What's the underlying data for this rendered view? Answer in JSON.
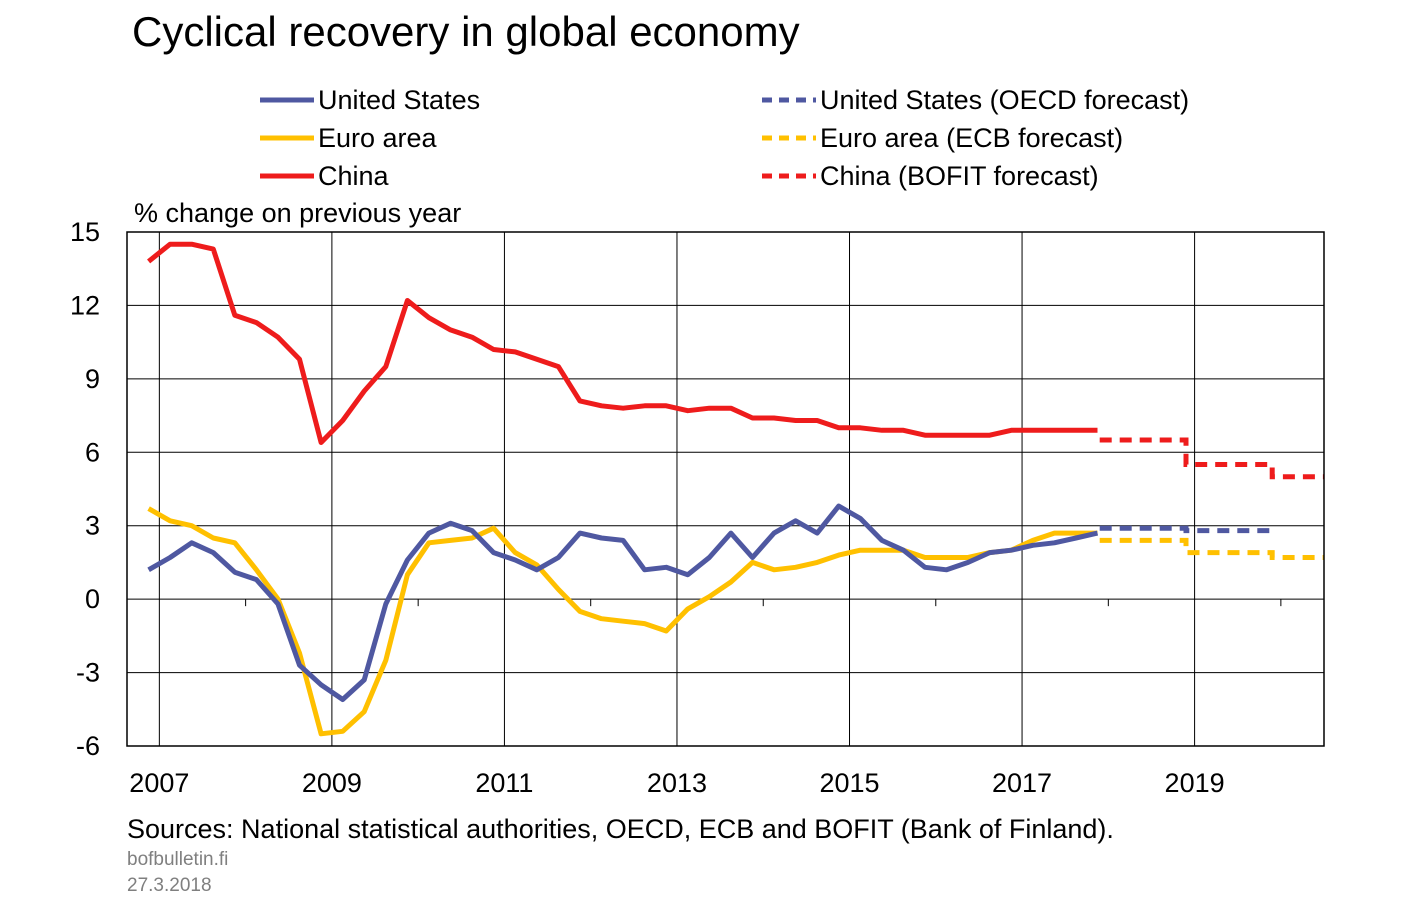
{
  "title": "Cyclical recovery in global economy",
  "unit_label": "% change on previous year",
  "source": "Sources: National statistical authorities, OECD, ECB and BOFIT (Bank of Finland).",
  "site": "bofbulletin.fi",
  "date": "27.3.2018",
  "colors": {
    "us": "#4F58A1",
    "euro": "#FFC000",
    "china": "#EE1C1C",
    "grid": "#000000"
  },
  "legend": [
    {
      "label": "United States",
      "color": "#4F58A1",
      "dashed": false
    },
    {
      "label": "Euro area",
      "color": "#FFC000",
      "dashed": false
    },
    {
      "label": "China",
      "color": "#EE1C1C",
      "dashed": false
    },
    {
      "label": "United States (OECD forecast)",
      "color": "#4F58A1",
      "dashed": true
    },
    {
      "label": "Euro area (ECB forecast)",
      "color": "#FFC000",
      "dashed": true
    },
    {
      "label": "China (BOFIT forecast)",
      "color": "#EE1C1C",
      "dashed": true
    }
  ],
  "chart_data": {
    "type": "line",
    "title": "Cyclical recovery in global economy",
    "ylabel": "% change on previous year",
    "ylim": [
      -6,
      15
    ],
    "yticks": [
      -6,
      -3,
      0,
      3,
      6,
      9,
      12,
      15
    ],
    "xlim": [
      2006.625,
      2020.5
    ],
    "xticks": [
      "2007",
      "2009",
      "2011",
      "2013",
      "2015",
      "2017",
      "2019"
    ],
    "grid": "vertical lines at odd years, horizontal at y ticks",
    "legend_position": "top",
    "series": [
      {
        "name": "United States",
        "style": "solid",
        "color": "#4F58A1",
        "x": [
          "2006 Q4",
          "2007 Q1",
          "2007 Q2",
          "2007 Q3",
          "2007 Q4",
          "2008 Q1",
          "2008 Q2",
          "2008 Q3",
          "2008 Q4",
          "2009 Q1",
          "2009 Q2",
          "2009 Q3",
          "2009 Q4",
          "2010 Q1",
          "2010 Q2",
          "2010 Q3",
          "2010 Q4",
          "2011 Q1",
          "2011 Q2",
          "2011 Q3",
          "2011 Q4",
          "2012 Q1",
          "2012 Q2",
          "2012 Q3",
          "2012 Q4",
          "2013 Q1",
          "2013 Q2",
          "2013 Q3",
          "2013 Q4",
          "2014 Q1",
          "2014 Q2",
          "2014 Q3",
          "2014 Q4",
          "2015 Q1",
          "2015 Q2",
          "2015 Q3",
          "2015 Q4",
          "2016 Q1",
          "2016 Q2",
          "2016 Q3",
          "2016 Q4",
          "2017 Q1",
          "2017 Q2",
          "2017 Q3",
          "2017 Q4"
        ],
        "values": [
          1.2,
          1.7,
          2.3,
          1.9,
          1.1,
          0.8,
          -0.2,
          -2.7,
          -3.5,
          -4.1,
          -3.3,
          -0.2,
          1.6,
          2.7,
          3.1,
          2.8,
          1.9,
          1.6,
          1.2,
          1.7,
          2.7,
          2.5,
          2.4,
          1.2,
          1.3,
          1.0,
          1.7,
          2.7,
          1.7,
          2.7,
          3.2,
          2.7,
          3.8,
          3.3,
          2.4,
          2.0,
          1.3,
          1.2,
          1.5,
          1.9,
          2.0,
          2.2,
          2.3,
          2.5,
          2.7
        ]
      },
      {
        "name": "Euro area",
        "style": "solid",
        "color": "#FFC000",
        "x": [
          "2006 Q4",
          "2007 Q1",
          "2007 Q2",
          "2007 Q3",
          "2007 Q4",
          "2008 Q1",
          "2008 Q2",
          "2008 Q3",
          "2008 Q4",
          "2009 Q1",
          "2009 Q2",
          "2009 Q3",
          "2009 Q4",
          "2010 Q1",
          "2010 Q2",
          "2010 Q3",
          "2010 Q4",
          "2011 Q1",
          "2011 Q2",
          "2011 Q3",
          "2011 Q4",
          "2012 Q1",
          "2012 Q2",
          "2012 Q3",
          "2012 Q4",
          "2013 Q1",
          "2013 Q2",
          "2013 Q3",
          "2013 Q4",
          "2014 Q1",
          "2014 Q2",
          "2014 Q3",
          "2014 Q4",
          "2015 Q1",
          "2015 Q2",
          "2015 Q3",
          "2015 Q4",
          "2016 Q1",
          "2016 Q2",
          "2016 Q3",
          "2016 Q4",
          "2017 Q1",
          "2017 Q2",
          "2017 Q3",
          "2017 Q4"
        ],
        "values": [
          3.7,
          3.2,
          3.0,
          2.5,
          2.3,
          1.2,
          0.0,
          -2.2,
          -5.5,
          -5.4,
          -4.6,
          -2.5,
          1.0,
          2.3,
          2.4,
          2.5,
          2.9,
          1.9,
          1.4,
          0.4,
          -0.5,
          -0.8,
          -0.9,
          -1.0,
          -1.3,
          -0.4,
          0.1,
          0.7,
          1.5,
          1.2,
          1.3,
          1.5,
          1.8,
          2.0,
          2.0,
          2.0,
          1.7,
          1.7,
          1.7,
          1.9,
          2.0,
          2.4,
          2.7,
          2.7,
          2.7
        ]
      },
      {
        "name": "China",
        "style": "solid",
        "color": "#EE1C1C",
        "x": [
          "2006 Q4",
          "2007 Q1",
          "2007 Q2",
          "2007 Q3",
          "2007 Q4",
          "2008 Q1",
          "2008 Q2",
          "2008 Q3",
          "2008 Q4",
          "2009 Q1",
          "2009 Q2",
          "2009 Q3",
          "2009 Q4",
          "2010 Q1",
          "2010 Q2",
          "2010 Q3",
          "2010 Q4",
          "2011 Q1",
          "2011 Q2",
          "2011 Q3",
          "2011 Q4",
          "2012 Q1",
          "2012 Q2",
          "2012 Q3",
          "2012 Q4",
          "2013 Q1",
          "2013 Q2",
          "2013 Q3",
          "2013 Q4",
          "2014 Q1",
          "2014 Q2",
          "2014 Q3",
          "2014 Q4",
          "2015 Q1",
          "2015 Q2",
          "2015 Q3",
          "2015 Q4",
          "2016 Q1",
          "2016 Q2",
          "2016 Q3",
          "2016 Q4",
          "2017 Q1",
          "2017 Q2",
          "2017 Q3",
          "2017 Q4"
        ],
        "values": [
          13.8,
          14.5,
          14.5,
          14.3,
          11.6,
          11.3,
          10.7,
          9.8,
          6.4,
          7.3,
          8.5,
          9.5,
          12.2,
          11.5,
          11.0,
          10.7,
          10.2,
          10.1,
          9.8,
          9.5,
          8.1,
          7.9,
          7.8,
          7.9,
          7.9,
          7.7,
          7.8,
          7.8,
          7.4,
          7.4,
          7.3,
          7.3,
          7.0,
          7.0,
          6.9,
          6.9,
          6.7,
          6.7,
          6.7,
          6.7,
          6.9,
          6.9,
          6.9,
          6.9,
          6.9
        ]
      },
      {
        "name": "United States (OECD forecast)",
        "style": "dashed",
        "color": "#4F58A1",
        "x": [
          "2018",
          "2019"
        ],
        "values": [
          2.9,
          2.8
        ]
      },
      {
        "name": "Euro area (ECB forecast)",
        "style": "dashed",
        "color": "#FFC000",
        "x": [
          "2018",
          "2019",
          "2020"
        ],
        "values": [
          2.4,
          1.9,
          1.7
        ]
      },
      {
        "name": "China (BOFIT forecast)",
        "style": "dashed",
        "color": "#EE1C1C",
        "x": [
          "2018",
          "2019",
          "2020"
        ],
        "values": [
          6.5,
          5.5,
          5.0
        ]
      }
    ]
  }
}
